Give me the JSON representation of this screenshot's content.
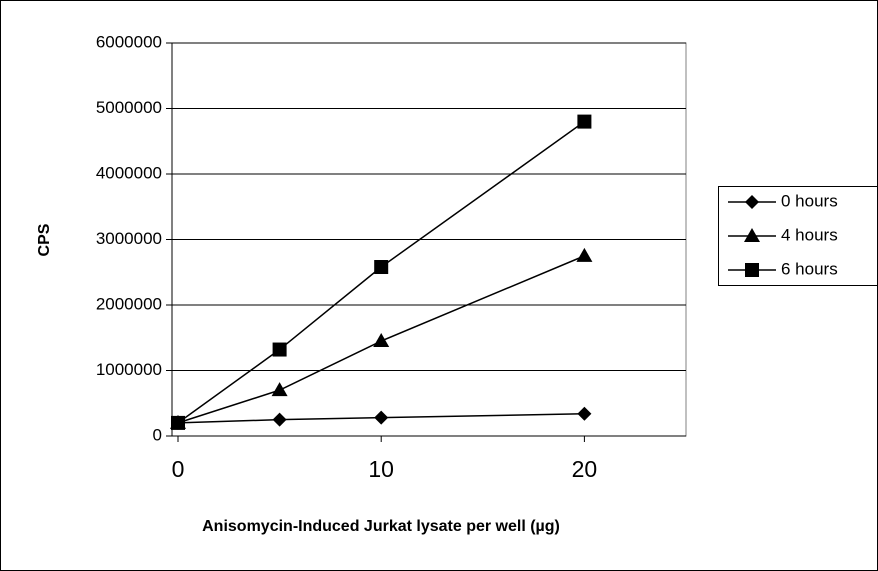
{
  "chart_data": {
    "type": "line",
    "x_label": "Anisomycin-Induced Jurkat lysate per well (µg)",
    "y_label": "CPS",
    "x": [
      0,
      5,
      10,
      20
    ],
    "series": [
      {
        "name": "0 hours",
        "color": "#000000",
        "marker": "diamond",
        "values": [
          200000,
          250000,
          280000,
          340000
        ]
      },
      {
        "name": "4 hours",
        "color": "#000000",
        "marker": "triangle",
        "values": [
          200000,
          700000,
          1450000,
          2750000
        ]
      },
      {
        "name": "6 hours",
        "color": "#000000",
        "marker": "square",
        "values": [
          200000,
          1320000,
          2580000,
          4800000
        ]
      }
    ],
    "xlim": [
      0,
      25
    ],
    "xticks": [
      0,
      10,
      20
    ],
    "ylim": [
      0,
      6000000
    ],
    "yticks": [
      0,
      1000000,
      2000000,
      3000000,
      4000000,
      5000000,
      6000000
    ],
    "grid": true,
    "legend": "right"
  }
}
